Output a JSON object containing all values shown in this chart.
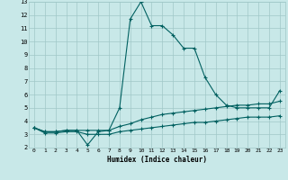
{
  "xlabel": "Humidex (Indice chaleur)",
  "xlim": [
    -0.5,
    23.5
  ],
  "ylim": [
    2,
    13
  ],
  "yticks": [
    2,
    3,
    4,
    5,
    6,
    7,
    8,
    9,
    10,
    11,
    12,
    13
  ],
  "xticks": [
    0,
    1,
    2,
    3,
    4,
    5,
    6,
    7,
    8,
    9,
    10,
    11,
    12,
    13,
    14,
    15,
    16,
    17,
    18,
    19,
    20,
    21,
    22,
    23
  ],
  "background_color": "#c8e8e8",
  "grid_color": "#a0c8c8",
  "line_color": "#006060",
  "line1": [
    3.5,
    3.2,
    3.2,
    3.3,
    3.3,
    2.2,
    3.2,
    3.3,
    5.0,
    11.7,
    13.0,
    11.2,
    11.2,
    10.5,
    9.5,
    9.5,
    7.3,
    6.0,
    5.2,
    5.0,
    5.0,
    5.0,
    5.0,
    6.3
  ],
  "line2": [
    3.5,
    3.2,
    3.2,
    3.3,
    3.3,
    3.3,
    3.3,
    3.3,
    3.6,
    3.8,
    4.1,
    4.3,
    4.5,
    4.6,
    4.7,
    4.8,
    4.9,
    5.0,
    5.1,
    5.2,
    5.2,
    5.3,
    5.3,
    5.5
  ],
  "line3": [
    3.5,
    3.1,
    3.1,
    3.2,
    3.2,
    3.0,
    3.0,
    3.0,
    3.2,
    3.3,
    3.4,
    3.5,
    3.6,
    3.7,
    3.8,
    3.9,
    3.9,
    4.0,
    4.1,
    4.2,
    4.3,
    4.3,
    4.3,
    4.4
  ]
}
